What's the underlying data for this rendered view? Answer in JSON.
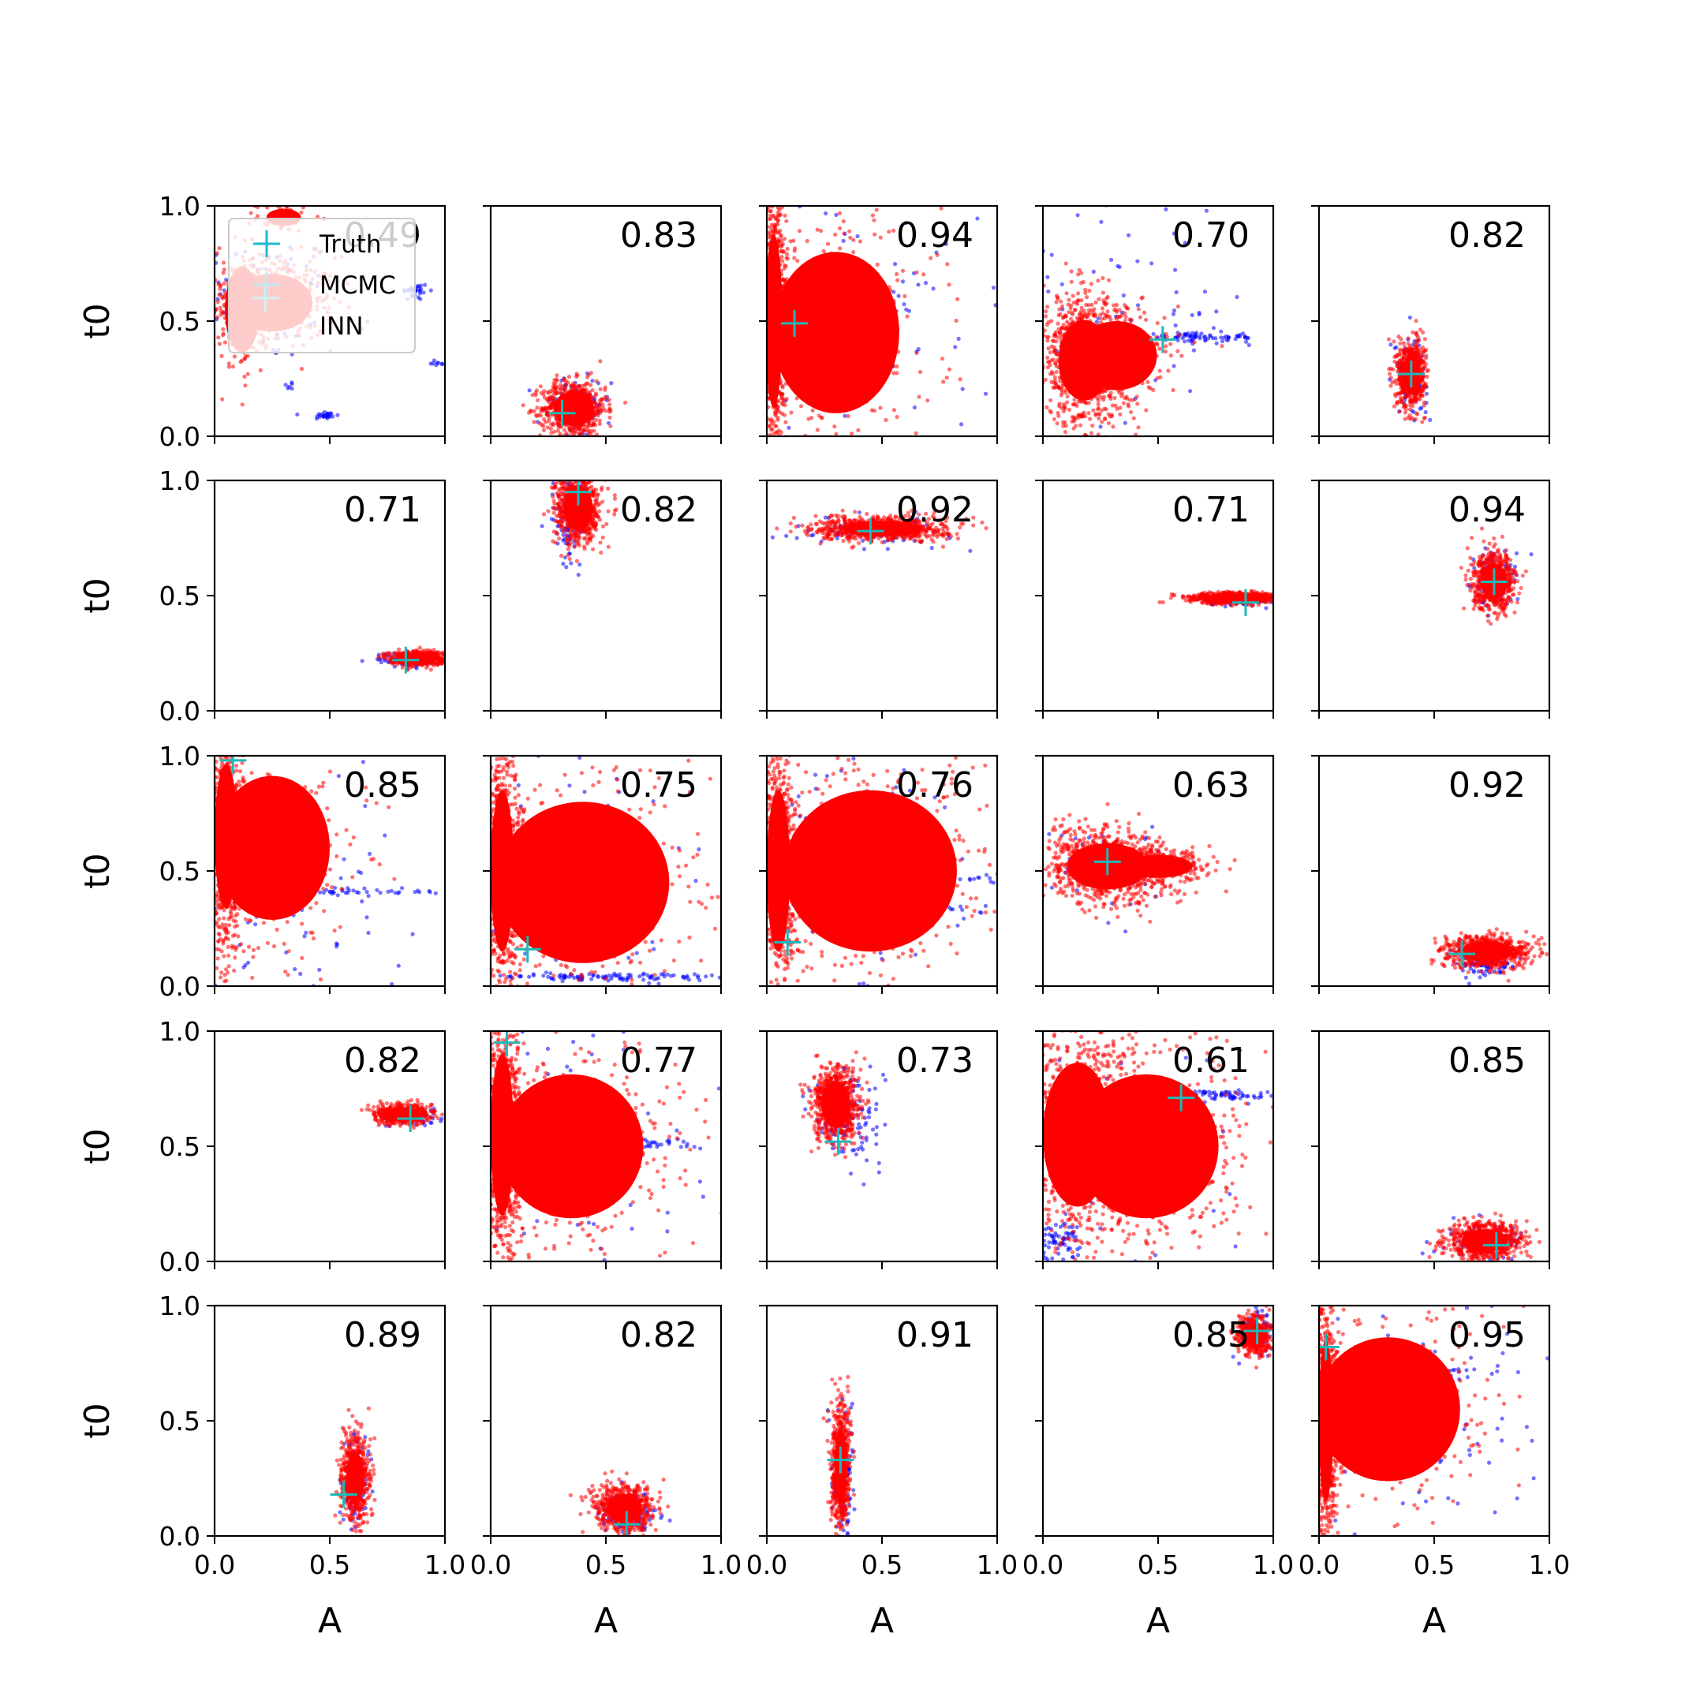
{
  "chart_data": {
    "type": "scatter",
    "grid": false,
    "layout": {
      "rows": 5,
      "cols": 5
    },
    "xlabel": "A",
    "ylabel": "t0",
    "xlim": [
      0,
      1
    ],
    "ylim": [
      0,
      1
    ],
    "xticks": [
      "0.0",
      "0.5",
      "1.0"
    ],
    "yticks": [
      "0.0",
      "0.5",
      "1.0"
    ],
    "tick_values": [
      0,
      0.5,
      1
    ],
    "legend": {
      "placement": "top-left of first panel",
      "entries": [
        {
          "label": "Truth",
          "marker": "plus",
          "color": "#17becf"
        },
        {
          "label": "MCMC",
          "marker": "plus",
          "color": "#bfe8ef"
        },
        {
          "label": "INN",
          "marker": "dot",
          "color": "#ffcccc"
        }
      ]
    },
    "colors": {
      "truth": "#1fb8b8",
      "mcmc": "#0000ff",
      "inn": "#ff0000"
    },
    "panels": [
      {
        "score": "0.49",
        "truth": [
          0.22,
          0.6
        ],
        "inn": [
          {
            "cx": 0.25,
            "cy": 0.58,
            "sx": 0.14,
            "sy": 0.1,
            "n": 350
          },
          {
            "cx": 0.12,
            "cy": 0.55,
            "sx": 0.06,
            "sy": 0.15,
            "n": 120
          },
          {
            "cx": 0.3,
            "cy": 0.95,
            "sx": 0.06,
            "sy": 0.03,
            "n": 40
          }
        ],
        "mcmc": [
          {
            "cx": 0.22,
            "cy": 0.6,
            "sx": 0.16,
            "sy": 0.14,
            "n": 90
          },
          {
            "cx": 0.48,
            "cy": 0.09,
            "sx": 0.03,
            "sy": 0.01,
            "n": 25
          },
          {
            "cx": 0.87,
            "cy": 0.63,
            "sx": 0.03,
            "sy": 0.02,
            "n": 30
          },
          {
            "cx": 0.33,
            "cy": 0.22,
            "sx": 0.01,
            "sy": 0.01,
            "n": 6
          },
          {
            "cx": 0.97,
            "cy": 0.32,
            "sx": 0.02,
            "sy": 0.01,
            "n": 8
          }
        ]
      },
      {
        "score": "0.83",
        "truth": [
          0.31,
          0.1
        ],
        "inn": [
          {
            "cx": 0.36,
            "cy": 0.12,
            "sx": 0.07,
            "sy": 0.06,
            "n": 700
          }
        ],
        "mcmc": [
          {
            "cx": 0.36,
            "cy": 0.12,
            "sx": 0.08,
            "sy": 0.07,
            "n": 80
          }
        ]
      },
      {
        "score": "0.94",
        "truth": [
          0.12,
          0.49
        ],
        "inn": [
          {
            "cx": 0.03,
            "cy": 0.5,
            "sx": 0.03,
            "sy": 0.3,
            "n": 900
          },
          {
            "cx": 0.3,
            "cy": 0.45,
            "sx": 0.22,
            "sy": 0.28,
            "n": 350
          }
        ],
        "mcmc": [
          {
            "cx": 0.25,
            "cy": 0.49,
            "sx": 0.12,
            "sy": 0.01,
            "n": 70
          },
          {
            "cx": 0.4,
            "cy": 0.55,
            "sx": 0.3,
            "sy": 0.3,
            "n": 90
          }
        ]
      },
      {
        "score": "0.70",
        "truth": [
          0.52,
          0.42
        ],
        "inn": [
          {
            "cx": 0.18,
            "cy": 0.33,
            "sx": 0.09,
            "sy": 0.14,
            "n": 900
          },
          {
            "cx": 0.32,
            "cy": 0.35,
            "sx": 0.14,
            "sy": 0.12,
            "n": 250
          }
        ],
        "mcmc": [
          {
            "cx": 0.68,
            "cy": 0.43,
            "sx": 0.13,
            "sy": 0.01,
            "n": 80
          },
          {
            "cx": 0.3,
            "cy": 0.55,
            "sx": 0.3,
            "sy": 0.3,
            "n": 90
          }
        ]
      },
      {
        "score": "0.82",
        "truth": [
          0.4,
          0.27
        ],
        "inn": [
          {
            "cx": 0.4,
            "cy": 0.27,
            "sx": 0.03,
            "sy": 0.07,
            "n": 700
          }
        ],
        "mcmc": [
          {
            "cx": 0.4,
            "cy": 0.27,
            "sx": 0.035,
            "sy": 0.08,
            "n": 90
          }
        ]
      },
      {
        "score": "0.71",
        "truth": [
          0.83,
          0.22
        ],
        "inn": [
          {
            "cx": 0.88,
            "cy": 0.23,
            "sx": 0.06,
            "sy": 0.015,
            "n": 600
          }
        ],
        "mcmc": [
          {
            "cx": 0.84,
            "cy": 0.22,
            "sx": 0.07,
            "sy": 0.015,
            "n": 80
          }
        ]
      },
      {
        "score": "0.82",
        "truth": [
          0.38,
          0.95
        ],
        "inn": [
          {
            "cx": 0.38,
            "cy": 0.88,
            "sx": 0.05,
            "sy": 0.08,
            "n": 700
          }
        ],
        "mcmc": [
          {
            "cx": 0.34,
            "cy": 0.82,
            "sx": 0.04,
            "sy": 0.1,
            "n": 90
          }
        ]
      },
      {
        "score": "0.92",
        "truth": [
          0.45,
          0.78
        ],
        "inn": [
          {
            "cx": 0.5,
            "cy": 0.79,
            "sx": 0.14,
            "sy": 0.025,
            "n": 800
          }
        ],
        "mcmc": [
          {
            "cx": 0.45,
            "cy": 0.78,
            "sx": 0.16,
            "sy": 0.03,
            "n": 80
          }
        ]
      },
      {
        "score": "0.71",
        "truth": [
          0.88,
          0.47
        ],
        "inn": [
          {
            "cx": 0.83,
            "cy": 0.49,
            "sx": 0.1,
            "sy": 0.012,
            "n": 700
          }
        ],
        "mcmc": [
          {
            "cx": 0.85,
            "cy": 0.48,
            "sx": 0.1,
            "sy": 0.012,
            "n": 80
          }
        ]
      },
      {
        "score": "0.94",
        "truth": [
          0.76,
          0.56
        ],
        "inn": [
          {
            "cx": 0.76,
            "cy": 0.56,
            "sx": 0.045,
            "sy": 0.06,
            "n": 700
          }
        ],
        "mcmc": [
          {
            "cx": 0.76,
            "cy": 0.56,
            "sx": 0.05,
            "sy": 0.07,
            "n": 90
          }
        ]
      },
      {
        "score": "0.85",
        "truth": [
          0.08,
          0.98
        ],
        "inn": [
          {
            "cx": 0.05,
            "cy": 0.65,
            "sx": 0.04,
            "sy": 0.25,
            "n": 900
          },
          {
            "cx": 0.25,
            "cy": 0.6,
            "sx": 0.2,
            "sy": 0.25,
            "n": 250
          }
        ],
        "mcmc": [
          {
            "cx": 0.45,
            "cy": 0.41,
            "sx": 0.25,
            "sy": 0.008,
            "n": 80
          },
          {
            "cx": 0.3,
            "cy": 0.4,
            "sx": 0.3,
            "sy": 0.3,
            "n": 80
          }
        ]
      },
      {
        "score": "0.75",
        "truth": [
          0.16,
          0.16
        ],
        "inn": [
          {
            "cx": 0.05,
            "cy": 0.5,
            "sx": 0.04,
            "sy": 0.28,
            "n": 700
          },
          {
            "cx": 0.4,
            "cy": 0.45,
            "sx": 0.3,
            "sy": 0.28,
            "n": 400
          }
        ],
        "mcmc": [
          {
            "cx": 0.55,
            "cy": 0.04,
            "sx": 0.3,
            "sy": 0.008,
            "n": 120
          },
          {
            "cx": 0.55,
            "cy": 0.46,
            "sx": 0.15,
            "sy": 0.01,
            "n": 50
          },
          {
            "cx": 0.4,
            "cy": 0.5,
            "sx": 0.3,
            "sy": 0.3,
            "n": 100
          }
        ]
      },
      {
        "score": "0.76",
        "truth": [
          0.09,
          0.19
        ],
        "inn": [
          {
            "cx": 0.05,
            "cy": 0.5,
            "sx": 0.04,
            "sy": 0.28,
            "n": 700
          },
          {
            "cx": 0.45,
            "cy": 0.5,
            "sx": 0.3,
            "sy": 0.28,
            "n": 500
          }
        ],
        "mcmc": [
          {
            "cx": 0.5,
            "cy": 0.34,
            "sx": 0.25,
            "sy": 0.01,
            "n": 70
          },
          {
            "cx": 0.7,
            "cy": 0.47,
            "sx": 0.15,
            "sy": 0.01,
            "n": 40
          },
          {
            "cx": 0.4,
            "cy": 0.5,
            "sx": 0.3,
            "sy": 0.3,
            "n": 100
          }
        ]
      },
      {
        "score": "0.63",
        "truth": [
          0.28,
          0.54
        ],
        "inn": [
          {
            "cx": 0.28,
            "cy": 0.52,
            "sx": 0.14,
            "sy": 0.08,
            "n": 900
          },
          {
            "cx": 0.5,
            "cy": 0.52,
            "sx": 0.12,
            "sy": 0.04,
            "n": 200
          }
        ],
        "mcmc": [
          {
            "cx": 0.3,
            "cy": 0.52,
            "sx": 0.15,
            "sy": 0.12,
            "n": 40
          }
        ]
      },
      {
        "score": "0.92",
        "truth": [
          0.62,
          0.14
        ],
        "inn": [
          {
            "cx": 0.73,
            "cy": 0.15,
            "sx": 0.09,
            "sy": 0.035,
            "n": 700
          }
        ],
        "mcmc": [
          {
            "cx": 0.72,
            "cy": 0.1,
            "sx": 0.08,
            "sy": 0.03,
            "n": 90
          }
        ]
      },
      {
        "score": "0.82",
        "truth": [
          0.85,
          0.62
        ],
        "inn": [
          {
            "cx": 0.82,
            "cy": 0.64,
            "sx": 0.06,
            "sy": 0.02,
            "n": 600
          }
        ],
        "mcmc": [
          {
            "cx": 0.84,
            "cy": 0.63,
            "sx": 0.07,
            "sy": 0.02,
            "n": 80
          }
        ]
      },
      {
        "score": "0.77",
        "truth": [
          0.07,
          0.95
        ],
        "inn": [
          {
            "cx": 0.05,
            "cy": 0.55,
            "sx": 0.04,
            "sy": 0.28,
            "n": 800
          },
          {
            "cx": 0.35,
            "cy": 0.5,
            "sx": 0.25,
            "sy": 0.25,
            "n": 400
          }
        ],
        "mcmc": [
          {
            "cx": 0.55,
            "cy": 0.51,
            "sx": 0.25,
            "sy": 0.01,
            "n": 80
          },
          {
            "cx": 0.4,
            "cy": 0.45,
            "sx": 0.3,
            "sy": 0.3,
            "n": 80
          }
        ]
      },
      {
        "score": "0.73",
        "truth": [
          0.31,
          0.52
        ],
        "inn": [
          {
            "cx": 0.3,
            "cy": 0.68,
            "sx": 0.05,
            "sy": 0.08,
            "n": 800
          }
        ],
        "mcmc": [
          {
            "cx": 0.35,
            "cy": 0.62,
            "sx": 0.07,
            "sy": 0.1,
            "n": 120
          }
        ]
      },
      {
        "score": "0.61",
        "truth": [
          0.6,
          0.71
        ],
        "inn": [
          {
            "cx": 0.15,
            "cy": 0.55,
            "sx": 0.12,
            "sy": 0.25,
            "n": 900
          },
          {
            "cx": 0.45,
            "cy": 0.5,
            "sx": 0.25,
            "sy": 0.25,
            "n": 500
          }
        ],
        "mcmc": [
          {
            "cx": 0.78,
            "cy": 0.72,
            "sx": 0.15,
            "sy": 0.01,
            "n": 80
          },
          {
            "cx": 0.05,
            "cy": 0.08,
            "sx": 0.05,
            "sy": 0.05,
            "n": 80
          },
          {
            "cx": 0.4,
            "cy": 0.5,
            "sx": 0.3,
            "sy": 0.3,
            "n": 60
          }
        ]
      },
      {
        "score": "0.85",
        "truth": [
          0.77,
          0.07
        ],
        "inn": [
          {
            "cx": 0.72,
            "cy": 0.09,
            "sx": 0.08,
            "sy": 0.04,
            "n": 700
          }
        ],
        "mcmc": [
          {
            "cx": 0.72,
            "cy": 0.08,
            "sx": 0.09,
            "sy": 0.04,
            "n": 90
          }
        ]
      },
      {
        "score": "0.89",
        "truth": [
          0.56,
          0.18
        ],
        "inn": [
          {
            "cx": 0.61,
            "cy": 0.25,
            "sx": 0.03,
            "sy": 0.09,
            "n": 700
          }
        ],
        "mcmc": [
          {
            "cx": 0.61,
            "cy": 0.24,
            "sx": 0.035,
            "sy": 0.1,
            "n": 90
          }
        ]
      },
      {
        "score": "0.82",
        "truth": [
          0.59,
          0.05
        ],
        "inn": [
          {
            "cx": 0.58,
            "cy": 0.12,
            "sx": 0.06,
            "sy": 0.05,
            "n": 700
          }
        ],
        "mcmc": [
          {
            "cx": 0.6,
            "cy": 0.1,
            "sx": 0.07,
            "sy": 0.05,
            "n": 90
          }
        ]
      },
      {
        "score": "0.91",
        "truth": [
          0.32,
          0.33
        ],
        "inn": [
          {
            "cx": 0.32,
            "cy": 0.3,
            "sx": 0.02,
            "sy": 0.13,
            "n": 700
          }
        ],
        "mcmc": [
          {
            "cx": 0.33,
            "cy": 0.26,
            "sx": 0.025,
            "sy": 0.14,
            "n": 90
          }
        ]
      },
      {
        "score": "0.85",
        "truth": [
          0.93,
          0.89
        ],
        "inn": [
          {
            "cx": 0.92,
            "cy": 0.87,
            "sx": 0.035,
            "sy": 0.04,
            "n": 500
          }
        ],
        "mcmc": [
          {
            "cx": 0.92,
            "cy": 0.88,
            "sx": 0.04,
            "sy": 0.05,
            "n": 80
          }
        ]
      },
      {
        "score": "0.95",
        "truth": [
          0.03,
          0.82
        ],
        "inn": [
          {
            "cx": 0.03,
            "cy": 0.5,
            "sx": 0.025,
            "sy": 0.28,
            "n": 800
          },
          {
            "cx": 0.3,
            "cy": 0.55,
            "sx": 0.25,
            "sy": 0.25,
            "n": 250
          }
        ],
        "mcmc": [
          {
            "cx": 0.45,
            "cy": 0.71,
            "sx": 0.15,
            "sy": 0.01,
            "n": 40
          },
          {
            "cx": 0.4,
            "cy": 0.55,
            "sx": 0.3,
            "sy": 0.3,
            "n": 100
          }
        ]
      }
    ]
  }
}
